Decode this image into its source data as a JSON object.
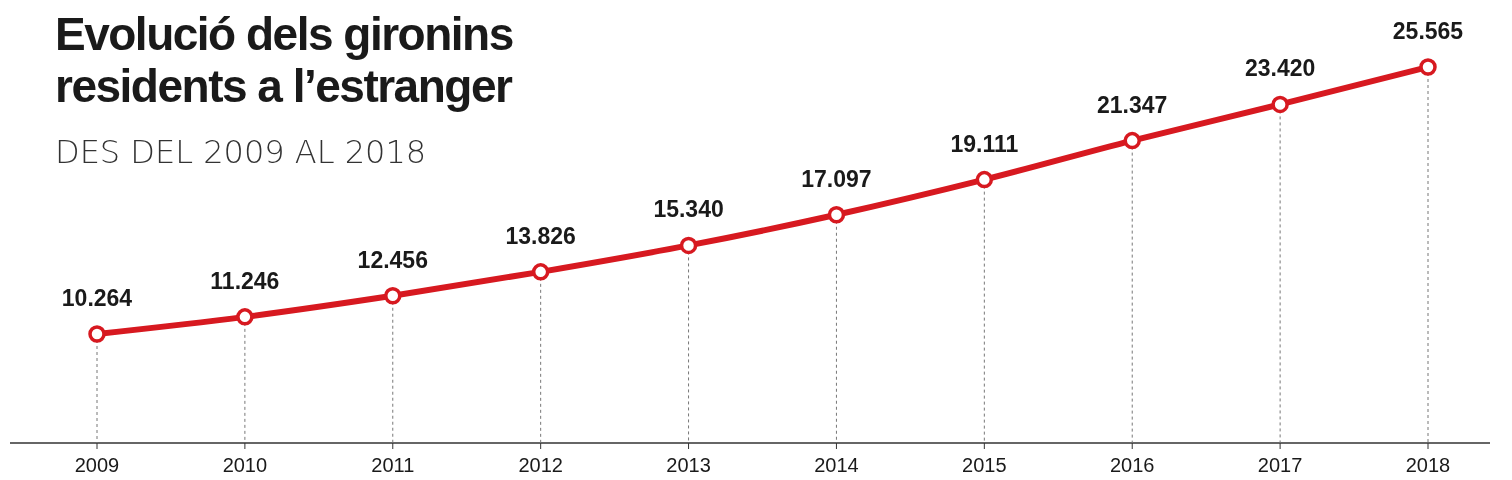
{
  "chart_data": {
    "type": "line",
    "title": "Evolució dels gironins\nresidents a l’estranger",
    "subtitle": "DES DEL 2009 AL 2018",
    "categories": [
      "2009",
      "2010",
      "2011",
      "2012",
      "2013",
      "2014",
      "2015",
      "2016",
      "2017",
      "2018"
    ],
    "series": [
      {
        "color": "#d71920",
        "values": [
          10264,
          11246,
          12456,
          13826,
          15340,
          17097,
          19111,
          21347,
          23420,
          25565
        ],
        "value_labels": [
          "10.264",
          "11.246",
          "12.456",
          "13.826",
          "15.340",
          "17.097",
          "19.111",
          "21.347",
          "23.420",
          "25.565"
        ]
      }
    ],
    "marker": "circle",
    "grid": "x"
  }
}
